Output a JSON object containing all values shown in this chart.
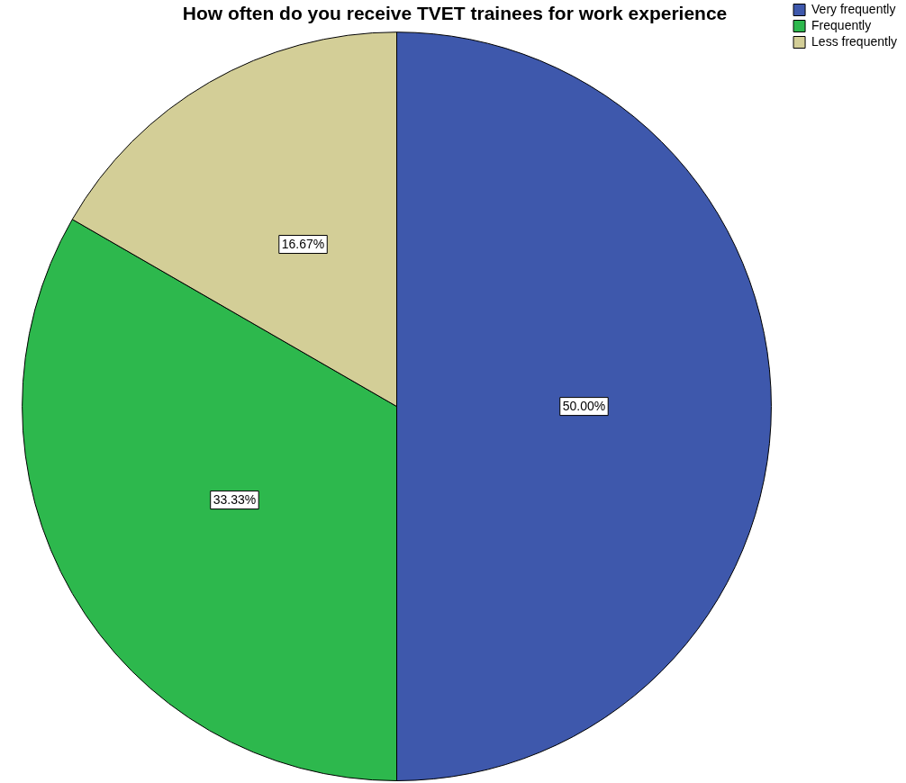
{
  "chart_data": {
    "type": "pie",
    "title": "How often do you receive TVET trainees for work experience",
    "categories": [
      "Very frequently",
      "Frequently",
      "Less frequently"
    ],
    "values": [
      50,
      33.33,
      16.67
    ],
    "colors": [
      "#3e58ac",
      "#2db84d",
      "#d3ce97"
    ],
    "value_labels": [
      "50.00%",
      "33.33%",
      "16.67%"
    ],
    "legend": "top right"
  }
}
